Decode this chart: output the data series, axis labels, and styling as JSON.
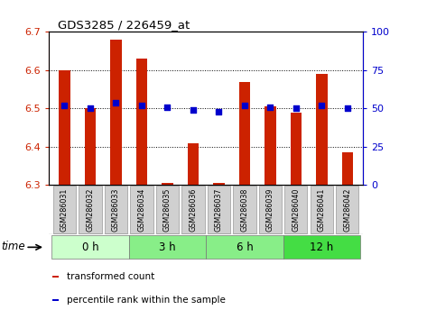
{
  "title": "GDS3285 / 226459_at",
  "samples": [
    "GSM286031",
    "GSM286032",
    "GSM286033",
    "GSM286034",
    "GSM286035",
    "GSM286036",
    "GSM286037",
    "GSM286038",
    "GSM286039",
    "GSM286040",
    "GSM286041",
    "GSM286042"
  ],
  "transformed_count": [
    6.6,
    6.5,
    6.68,
    6.63,
    6.305,
    6.41,
    6.305,
    6.57,
    6.505,
    6.49,
    6.59,
    6.385
  ],
  "percentile_rank": [
    52,
    50,
    54,
    52,
    51,
    49,
    48,
    52,
    51,
    50,
    52,
    50
  ],
  "bar_color": "#cc2200",
  "dot_color": "#0000cc",
  "ylim_left": [
    6.3,
    6.7
  ],
  "ylim_right": [
    0,
    100
  ],
  "yticks_left": [
    6.3,
    6.4,
    6.5,
    6.6,
    6.7
  ],
  "yticks_right": [
    0,
    25,
    50,
    75,
    100
  ],
  "ytick_labels_left": [
    "6.3",
    "6.4",
    "6.5",
    "6.6",
    "6.7"
  ],
  "ytick_labels_right": [
    "0",
    "25",
    "50",
    "75",
    "100"
  ],
  "groups": [
    {
      "label": "0 h",
      "start": 0,
      "end": 3,
      "color": "#ccffcc"
    },
    {
      "label": "3 h",
      "start": 3,
      "end": 6,
      "color": "#88ee88"
    },
    {
      "label": "6 h",
      "start": 6,
      "end": 9,
      "color": "#88ee88"
    },
    {
      "label": "12 h",
      "start": 9,
      "end": 12,
      "color": "#44dd44"
    }
  ],
  "bar_bottom": 6.3,
  "grid_color": "black",
  "bg_color": "white",
  "plot_bg": "white",
  "sample_box_color": "#d0d0d0",
  "time_label": "time",
  "legend_items": [
    {
      "label": "transformed count",
      "color": "#cc2200"
    },
    {
      "label": "percentile rank within the sample",
      "color": "#0000cc"
    }
  ]
}
